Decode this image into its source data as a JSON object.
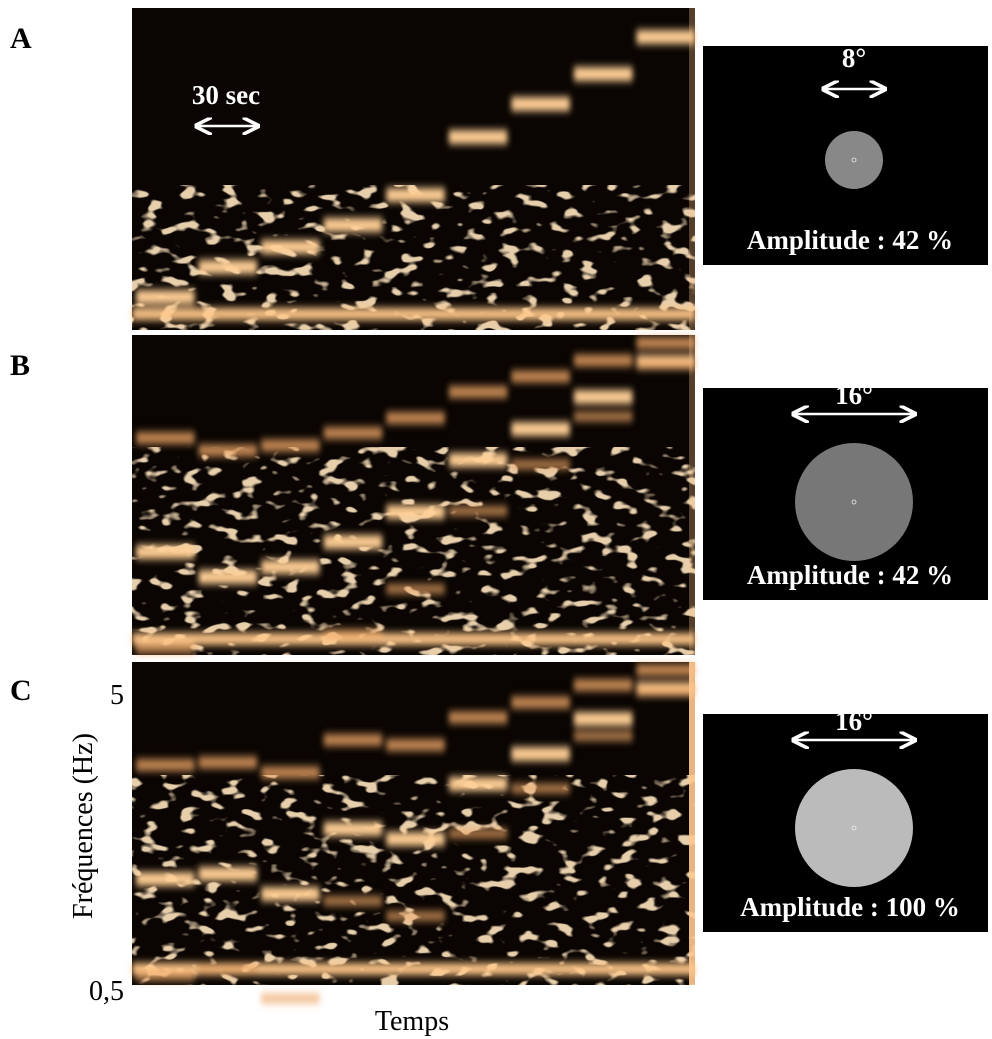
{
  "panels": [
    {
      "label": "A",
      "stimulus": {
        "size": "8°",
        "amplitude": "Amplitude : 42 %"
      }
    },
    {
      "label": "B",
      "stimulus": {
        "size": "16°",
        "amplitude": "Amplitude : 42 %"
      }
    },
    {
      "label": "C",
      "stimulus": {
        "size": "16°",
        "amplitude": "Amplitude : 100 %"
      }
    }
  ],
  "scale_bar": "30 sec",
  "y_axis": {
    "label": "Fréquences (Hz)",
    "max": "5",
    "min": "0,5"
  },
  "x_axis": {
    "label": "Temps"
  }
}
